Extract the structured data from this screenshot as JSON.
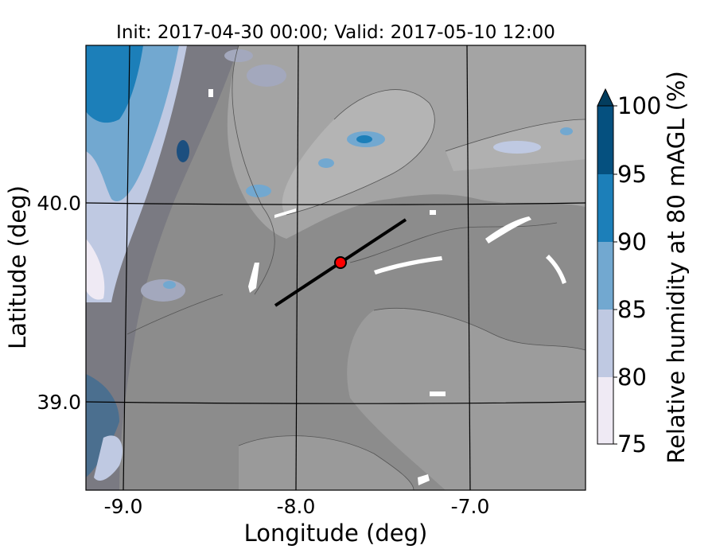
{
  "title": "Init: 2017-04-30 00:00; Valid: 2017-05-10 12:00",
  "xlabel": "Longitude (deg)",
  "ylabel": "Latitude (deg)",
  "xticks": [
    "-9.0",
    "-8.0",
    "-7.0"
  ],
  "yticks": [
    "40.0",
    "39.0"
  ],
  "colorbar": {
    "label": "Relative humidity at 80 mAGL (%)",
    "ticks": [
      "75",
      "80",
      "85",
      "90",
      "95",
      "100"
    ],
    "extend": "max",
    "colors": [
      "#efeaf4",
      "#bfc9e2",
      "#72a8d0",
      "#1c7fb9",
      "#05507f",
      "#033d5e"
    ]
  },
  "map": {
    "land_color": "#8c8c8c",
    "grid_on": true,
    "transect_line": {
      "start": [
        -8.12,
        39.48
      ],
      "end": [
        -7.38,
        39.91
      ]
    },
    "marker": {
      "lon": -7.75,
      "lat": 39.69,
      "color": "#ff0000"
    }
  }
}
